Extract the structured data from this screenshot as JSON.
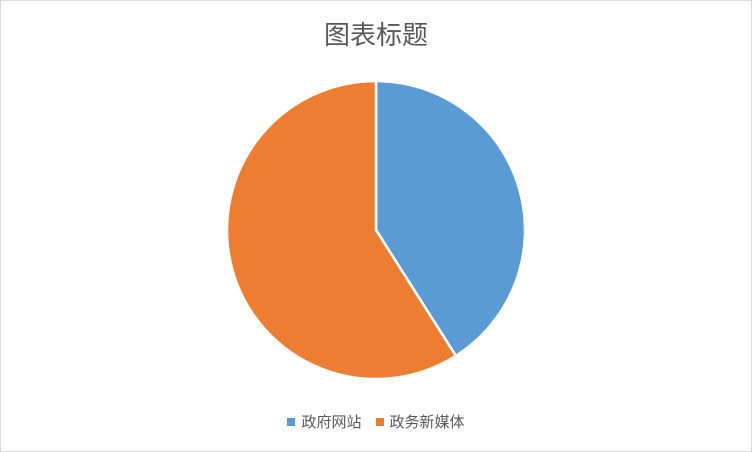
{
  "chart_data": {
    "type": "pie",
    "title": "图表标题",
    "categories": [
      "政府网站",
      "政务新媒体"
    ],
    "values": [
      41,
      59
    ],
    "colors": [
      "#5B9BD5",
      "#ED7D31"
    ],
    "legend": "bottom",
    "start_angle_deg": 0,
    "direction": "clockwise"
  }
}
